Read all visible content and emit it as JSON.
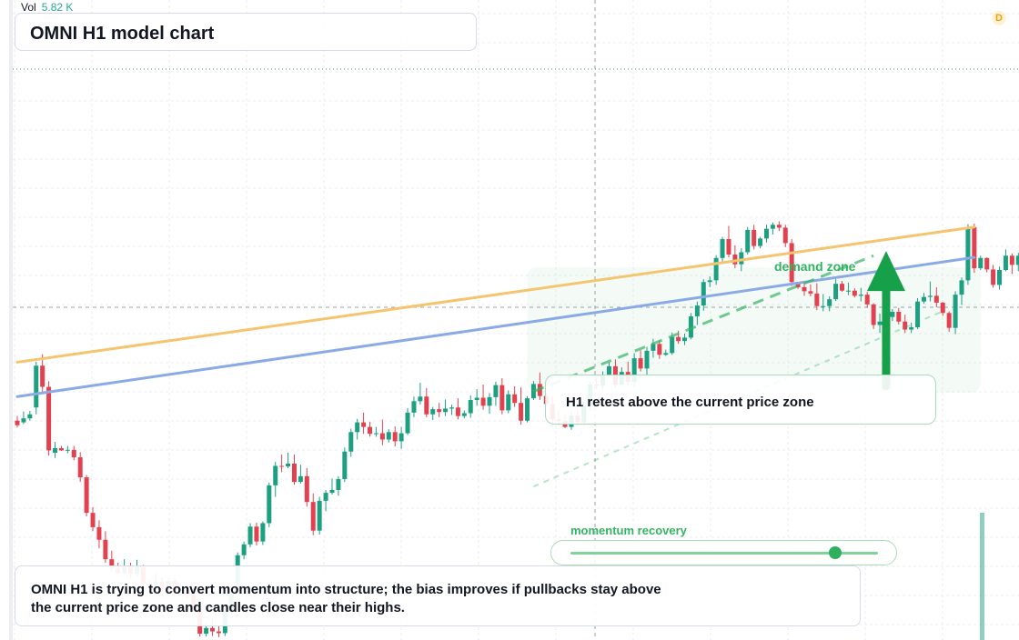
{
  "header": {
    "vol_label": "Vol",
    "vol_value": "5.82 K"
  },
  "title": "OMNI H1 model chart",
  "callout": "H1 retest above the current price zone",
  "zone_label": "demand zone",
  "momentum": {
    "label": "momentum recovery",
    "level": 0.86
  },
  "note": "OMNI H1 is trying to convert momentum into structure; the bias improves if pullbacks stay above the current price zone and candles close near their highs.",
  "badge": "D",
  "colors": {
    "up": "#1d9f82",
    "down": "#e2424f",
    "orange_line": "#f4c56e",
    "blue_line": "#8aaae6",
    "zone": "#2fae5e"
  },
  "chart_data": {
    "type": "candlestick",
    "price_range": [
      0,
      100
    ],
    "candles_ohlc": [
      [
        38.3,
        39.1,
        37.1,
        37.5
      ],
      [
        38.0,
        39.9,
        37.7,
        38.7
      ],
      [
        38.7,
        40.0,
        38.3,
        39.4
      ],
      [
        40.6,
        48.6,
        39.4,
        47.9
      ],
      [
        47.9,
        49.9,
        43.3,
        44.2
      ],
      [
        44.2,
        45.2,
        32.2,
        33.1
      ],
      [
        32.7,
        34.6,
        31.8,
        33.5
      ],
      [
        33.5,
        33.9,
        33.0,
        33.1
      ],
      [
        33.1,
        33.9,
        32.6,
        33.2
      ],
      [
        33.2,
        33.9,
        31.4,
        31.9
      ],
      [
        31.9,
        32.8,
        27.6,
        28.4
      ],
      [
        28.4,
        28.8,
        21.6,
        22.2
      ],
      [
        22.2,
        23.2,
        19.0,
        19.7
      ],
      [
        19.7,
        20.9,
        16.0,
        17.5
      ],
      [
        17.5,
        19.0,
        13.5,
        14.1
      ],
      [
        14.1,
        15.6,
        12.0,
        12.6
      ],
      [
        12.6,
        13.5,
        11.3,
        11.7
      ],
      [
        11.7,
        14.1,
        11.4,
        12.8
      ],
      [
        12.8,
        13.5,
        10.9,
        11.6
      ],
      [
        11.6,
        14.0,
        11.0,
        12.7
      ],
      [
        12.7,
        13.1,
        9.2,
        9.9
      ],
      [
        9.9,
        10.4,
        8.2,
        9.6
      ],
      [
        9.6,
        11.7,
        8.9,
        10.2
      ],
      [
        10.2,
        10.9,
        8.5,
        9.3
      ],
      [
        9.3,
        10.8,
        9.1,
        10.3
      ],
      [
        10.3,
        10.9,
        7.7,
        8.6
      ],
      [
        8.6,
        9.6,
        7.8,
        8.6
      ],
      [
        8.6,
        9.7,
        7.3,
        8.0
      ],
      [
        8.0,
        8.7,
        5.0,
        5.8
      ],
      [
        5.8,
        6.8,
        0.6,
        1.1
      ],
      [
        1.1,
        2.8,
        0.6,
        2.1
      ],
      [
        2.1,
        4.2,
        0.7,
        1.5
      ],
      [
        1.5,
        2.4,
        0.5,
        1.2
      ],
      [
        1.2,
        5.6,
        0.7,
        5.1
      ],
      [
        5.1,
        8.6,
        4.6,
        8.0
      ],
      [
        8.0,
        15.3,
        7.5,
        14.8
      ],
      [
        14.8,
        17.2,
        14.1,
        16.7
      ],
      [
        16.7,
        20.4,
        16.2,
        19.8
      ],
      [
        19.8,
        20.5,
        16.5,
        17.2
      ],
      [
        17.2,
        20.7,
        16.6,
        20.4
      ],
      [
        20.4,
        27.5,
        19.7,
        27.0
      ],
      [
        27.0,
        31.1,
        25.0,
        30.4
      ],
      [
        30.4,
        32.4,
        29.3,
        30.3
      ],
      [
        30.3,
        32.7,
        30.0,
        30.8
      ],
      [
        30.8,
        32.4,
        27.1,
        27.6
      ],
      [
        27.6,
        30.6,
        27.3,
        28.6
      ],
      [
        28.6,
        30.0,
        23.3,
        24.1
      ],
      [
        24.1,
        25.6,
        18.3,
        19.1
      ],
      [
        19.1,
        25.0,
        18.4,
        24.3
      ],
      [
        24.3,
        26.2,
        22.5,
        25.7
      ],
      [
        25.7,
        28.2,
        25.4,
        26.2
      ],
      [
        26.2,
        28.6,
        25.2,
        28.1
      ],
      [
        28.1,
        33.6,
        27.6,
        32.9
      ],
      [
        32.9,
        36.9,
        32.0,
        36.3
      ],
      [
        36.3,
        38.6,
        35.0,
        38.0
      ],
      [
        38.0,
        39.7,
        36.0,
        37.2
      ],
      [
        37.2,
        38.1,
        35.5,
        36.0
      ],
      [
        36.0,
        37.2,
        35.5,
        36.1
      ],
      [
        36.1,
        38.5,
        34.0,
        35.0
      ],
      [
        35.0,
        36.8,
        34.5,
        36.3
      ],
      [
        36.3,
        37.3,
        33.8,
        34.7
      ],
      [
        34.7,
        37.2,
        33.4,
        36.1
      ],
      [
        36.1,
        40.5,
        35.8,
        39.7
      ],
      [
        39.7,
        42.5,
        38.9,
        41.7
      ],
      [
        41.7,
        44.9,
        41.1,
        42.5
      ],
      [
        42.5,
        44.0,
        38.9,
        39.4
      ],
      [
        39.4,
        40.7,
        38.4,
        40.3
      ],
      [
        40.3,
        41.4,
        38.9,
        39.8
      ],
      [
        39.8,
        42.0,
        39.1,
        40.4
      ],
      [
        40.4,
        41.1,
        39.3,
        40.6
      ],
      [
        40.6,
        42.2,
        38.5,
        39.1
      ],
      [
        39.1,
        40.1,
        38.7,
        39.6
      ],
      [
        39.6,
        42.7,
        38.8,
        41.9
      ],
      [
        41.9,
        43.8,
        40.9,
        42.3
      ],
      [
        42.3,
        44.6,
        40.2,
        40.9
      ],
      [
        40.9,
        43.1,
        39.5,
        42.4
      ],
      [
        42.4,
        45.1,
        40.9,
        44.5
      ],
      [
        44.5,
        45.7,
        39.4,
        40.1
      ],
      [
        40.1,
        43.6,
        39.6,
        42.9
      ],
      [
        42.9,
        44.3,
        40.7,
        41.4
      ],
      [
        41.4,
        44.1,
        37.6,
        38.3
      ],
      [
        38.3,
        42.6,
        38.0,
        42.2
      ],
      [
        42.2,
        45.2,
        41.9,
        44.7
      ],
      [
        44.7,
        46.7,
        41.9,
        42.6
      ],
      [
        42.6,
        43.2,
        40.7,
        41.2
      ],
      [
        41.2,
        42.6,
        37.7,
        38.5
      ],
      [
        38.5,
        39.9,
        37.6,
        38.2
      ],
      [
        38.2,
        39.5,
        37.0,
        37.2
      ],
      [
        37.2,
        40.0,
        36.7,
        39.2
      ],
      [
        39.2,
        40.3,
        37.6,
        38.0
      ],
      [
        38.0,
        41.6,
        37.6,
        40.9
      ],
      [
        40.9,
        45.1,
        40.0,
        44.6
      ],
      [
        44.6,
        45.9,
        43.8,
        44.4
      ],
      [
        44.4,
        46.9,
        43.8,
        46.2
      ],
      [
        46.2,
        48.5,
        45.9,
        47.8
      ],
      [
        47.8,
        49.0,
        43.9,
        44.6
      ],
      [
        44.6,
        47.6,
        44.3,
        46.8
      ],
      [
        46.8,
        48.6,
        44.3,
        45.1
      ],
      [
        45.1,
        50.1,
        44.1,
        49.2
      ],
      [
        49.2,
        50.6,
        46.9,
        47.4
      ],
      [
        47.4,
        51.2,
        46.1,
        50.5
      ],
      [
        50.5,
        52.6,
        49.3,
        51.7
      ],
      [
        51.7,
        52.3,
        49.1,
        49.8
      ],
      [
        49.8,
        50.7,
        49.6,
        50.1
      ],
      [
        50.1,
        53.7,
        49.8,
        52.9
      ],
      [
        52.9,
        54.0,
        51.7,
        52.2
      ],
      [
        52.2,
        53.5,
        51.5,
        52.8
      ],
      [
        52.8,
        57.1,
        52.5,
        56.5
      ],
      [
        56.5,
        59.1,
        55.0,
        58.4
      ],
      [
        58.4,
        63.0,
        57.5,
        62.5
      ],
      [
        62.5,
        63.5,
        61.6,
        62.8
      ],
      [
        62.8,
        67.2,
        62.0,
        66.7
      ],
      [
        66.7,
        70.4,
        66.0,
        70.0
      ],
      [
        70.0,
        72.3,
        66.8,
        67.3
      ],
      [
        67.3,
        68.9,
        64.9,
        65.6
      ],
      [
        65.6,
        68.4,
        64.4,
        67.7
      ],
      [
        67.7,
        72.1,
        67.3,
        71.6
      ],
      [
        71.6,
        72.5,
        68.2,
        68.8
      ],
      [
        68.8,
        70.4,
        68.4,
        70.1
      ],
      [
        70.1,
        72.5,
        69.4,
        71.8
      ],
      [
        71.8,
        72.9,
        70.8,
        72.5
      ],
      [
        72.5,
        73.1,
        71.4,
        72.0
      ],
      [
        72.0,
        72.5,
        68.6,
        69.3
      ],
      [
        69.3,
        70.0,
        61.8,
        62.5
      ],
      [
        62.5,
        62.5,
        61.3,
        61.6
      ],
      [
        61.6,
        62.3,
        60.1,
        60.9
      ],
      [
        60.9,
        62.1,
        60.0,
        60.5
      ],
      [
        60.5,
        62.3,
        57.6,
        58.3
      ],
      [
        58.3,
        60.4,
        57.4,
        58.3
      ],
      [
        58.3,
        60.0,
        57.4,
        59.5
      ],
      [
        59.5,
        63.0,
        59.2,
        62.2
      ],
      [
        62.2,
        62.7,
        60.8,
        61.0
      ],
      [
        61.0,
        62.4,
        60.2,
        61.0
      ],
      [
        61.0,
        61.4,
        59.8,
        60.1
      ],
      [
        60.1,
        61.5,
        59.1,
        60.3
      ],
      [
        60.3,
        60.8,
        58.0,
        58.6
      ],
      [
        58.6,
        58.8,
        54.3,
        55.0
      ],
      [
        55.0,
        57.0,
        53.6,
        55.6
      ],
      [
        55.6,
        57.0,
        53.9,
        56.4
      ],
      [
        56.4,
        57.8,
        55.7,
        57.3
      ],
      [
        57.3,
        58.0,
        55.1,
        55.6
      ],
      [
        55.6,
        56.8,
        53.6,
        54.2
      ],
      [
        54.2,
        55.4,
        53.6,
        54.6
      ],
      [
        54.6,
        59.7,
        54.3,
        59.1
      ],
      [
        59.1,
        60.6,
        58.7,
        59.9
      ],
      [
        59.9,
        62.6,
        59.1,
        60.1
      ],
      [
        60.1,
        61.6,
        58.1,
        58.9
      ],
      [
        58.9,
        59.0,
        56.6,
        57.1
      ],
      [
        57.1,
        57.4,
        53.8,
        54.5
      ],
      [
        54.5,
        60.9,
        53.4,
        60.3
      ],
      [
        60.3,
        63.3,
        58.5,
        62.8
      ],
      [
        62.8,
        72.6,
        62.0,
        72.1
      ],
      [
        72.1,
        72.7,
        64.1,
        64.9
      ],
      [
        64.9,
        67.1,
        64.6,
        66.7
      ],
      [
        66.7,
        66.8,
        64.2,
        64.7
      ],
      [
        64.7,
        65.5,
        61.5,
        62.0
      ],
      [
        62.0,
        65.2,
        61.2,
        64.6
      ],
      [
        64.6,
        68.2,
        64.4,
        67.1
      ],
      [
        67.1,
        67.5,
        63.9,
        65.5
      ],
      [
        65.5,
        67.6,
        64.4,
        67.1
      ],
      [
        67.1,
        67.6,
        65.0,
        65.5
      ],
      [
        65.5,
        66.8,
        63.3,
        63.9
      ],
      [
        63.9,
        65.9,
        63.3,
        65.4
      ],
      [
        65.4,
        67.7,
        64.8,
        65.3
      ],
      [
        65.3,
        68.1,
        64.7,
        68.0
      ],
      [
        68.0,
        69.3,
        66.2,
        66.7
      ],
      [
        66.7,
        68.1,
        62.3,
        67.5
      ],
      [
        67.5,
        69.3,
        66.8,
        68.9
      ],
      [
        68.9,
        90.0,
        68.7,
        88.3
      ]
    ],
    "orange_trendline": [
      [
        0,
        48.5
      ],
      [
        152,
        72.1
      ]
    ],
    "blue_trendline": [
      [
        0,
        42.5
      ],
      [
        152,
        66.8
      ]
    ],
    "support_dashed": [
      [
        82,
        43.4
      ],
      [
        136,
        67.1
      ]
    ],
    "support_dashed_faint": [
      [
        82,
        26.8
      ],
      [
        147,
        57.4
      ]
    ],
    "demand_zone": {
      "index_from": 81,
      "index_to": 153,
      "price_from": 43.2,
      "price_to": 65.1
    },
    "arrow": {
      "index": 138,
      "price_from": 44.3,
      "price_to": 67.6
    },
    "volume_last": 5.82
  }
}
